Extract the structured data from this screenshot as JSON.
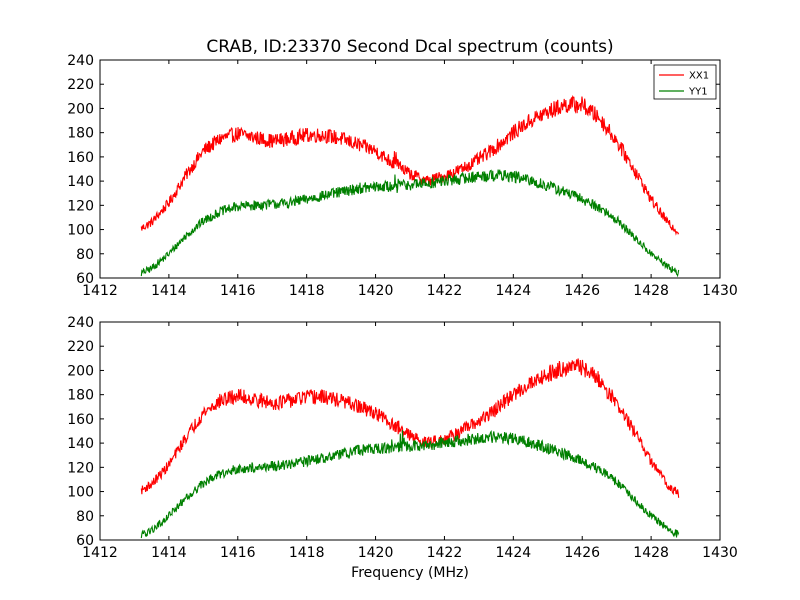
{
  "figure_title": "CRAB, ID:23370 Second Dcal spectrum (counts)",
  "chart_data": [
    {
      "type": "line",
      "title": "CRAB, ID:23370 Second Dcal spectrum (counts)",
      "xlabel": "",
      "ylabel": "",
      "xlim": [
        1412,
        1430
      ],
      "ylim": [
        60,
        240
      ],
      "xticks": [
        1412,
        1414,
        1416,
        1418,
        1420,
        1422,
        1424,
        1426,
        1428,
        1430
      ],
      "yticks": [
        60,
        80,
        100,
        120,
        140,
        160,
        180,
        200,
        220,
        240
      ],
      "grid": false,
      "legend": "top-right",
      "series": [
        {
          "name": "XX1",
          "color": "#ff0000",
          "x": [
            1413.2,
            1413.5,
            1414.0,
            1414.5,
            1415.0,
            1415.5,
            1416.0,
            1416.5,
            1417.0,
            1417.5,
            1418.0,
            1418.5,
            1419.0,
            1419.5,
            1420.0,
            1420.5,
            1421.0,
            1421.5,
            1422.0,
            1422.5,
            1423.0,
            1423.5,
            1424.0,
            1424.5,
            1425.0,
            1425.5,
            1426.0,
            1426.5,
            1427.0,
            1427.5,
            1428.0,
            1428.5,
            1428.8
          ],
          "y": [
            101,
            106,
            122,
            145,
            165,
            175,
            179,
            176,
            173,
            175,
            178,
            178,
            175,
            170,
            165,
            155,
            146,
            140,
            144,
            150,
            158,
            168,
            180,
            190,
            197,
            203,
            203,
            192,
            173,
            150,
            125,
            105,
            98
          ]
        },
        {
          "name": "YY1",
          "color": "#008000",
          "x": [
            1413.2,
            1413.5,
            1414.0,
            1414.5,
            1415.0,
            1415.5,
            1416.0,
            1416.5,
            1417.0,
            1417.5,
            1418.0,
            1418.5,
            1419.0,
            1419.5,
            1420.0,
            1420.5,
            1421.0,
            1421.5,
            1422.0,
            1422.5,
            1423.0,
            1423.5,
            1424.0,
            1424.5,
            1425.0,
            1425.5,
            1426.0,
            1426.5,
            1427.0,
            1427.5,
            1428.0,
            1428.5,
            1428.8
          ],
          "y": [
            64,
            68,
            80,
            95,
            107,
            115,
            119,
            120,
            121,
            122,
            125,
            128,
            131,
            134,
            135,
            136,
            137,
            138,
            140,
            142,
            144,
            145,
            144,
            140,
            136,
            131,
            125,
            118,
            108,
            94,
            80,
            69,
            64
          ]
        }
      ]
    },
    {
      "type": "line",
      "title": "",
      "xlabel": "Frequency (MHz)",
      "ylabel": "",
      "xlim": [
        1412,
        1430
      ],
      "ylim": [
        60,
        240
      ],
      "xticks": [
        1412,
        1414,
        1416,
        1418,
        1420,
        1422,
        1424,
        1426,
        1428,
        1430
      ],
      "yticks": [
        60,
        80,
        100,
        120,
        140,
        160,
        180,
        200,
        220,
        240
      ],
      "grid": false,
      "legend": "none",
      "series": [
        {
          "color": "#ff0000",
          "x": [
            1413.2,
            1413.5,
            1414.0,
            1414.5,
            1415.0,
            1415.5,
            1416.0,
            1416.5,
            1417.0,
            1417.5,
            1418.0,
            1418.5,
            1419.0,
            1419.5,
            1420.0,
            1420.5,
            1421.0,
            1421.5,
            1422.0,
            1422.5,
            1423.0,
            1423.5,
            1424.0,
            1424.5,
            1425.0,
            1425.5,
            1426.0,
            1426.5,
            1427.0,
            1427.5,
            1428.0,
            1428.5,
            1428.8
          ],
          "y": [
            101,
            106,
            122,
            145,
            165,
            175,
            179,
            176,
            173,
            175,
            178,
            178,
            175,
            170,
            165,
            155,
            146,
            140,
            144,
            150,
            158,
            168,
            180,
            190,
            197,
            203,
            203,
            192,
            173,
            150,
            125,
            105,
            98
          ]
        },
        {
          "color": "#008000",
          "x": [
            1413.2,
            1413.5,
            1414.0,
            1414.5,
            1415.0,
            1415.5,
            1416.0,
            1416.5,
            1417.0,
            1417.5,
            1418.0,
            1418.5,
            1419.0,
            1419.5,
            1420.0,
            1420.5,
            1421.0,
            1421.5,
            1422.0,
            1422.5,
            1423.0,
            1423.5,
            1424.0,
            1424.5,
            1425.0,
            1425.5,
            1426.0,
            1426.5,
            1427.0,
            1427.5,
            1428.0,
            1428.5,
            1428.8
          ],
          "y": [
            64,
            68,
            80,
            95,
            107,
            115,
            119,
            120,
            121,
            122,
            125,
            128,
            131,
            134,
            135,
            136,
            137,
            138,
            140,
            142,
            144,
            145,
            144,
            140,
            136,
            131,
            125,
            118,
            108,
            94,
            80,
            69,
            64
          ]
        }
      ]
    }
  ]
}
